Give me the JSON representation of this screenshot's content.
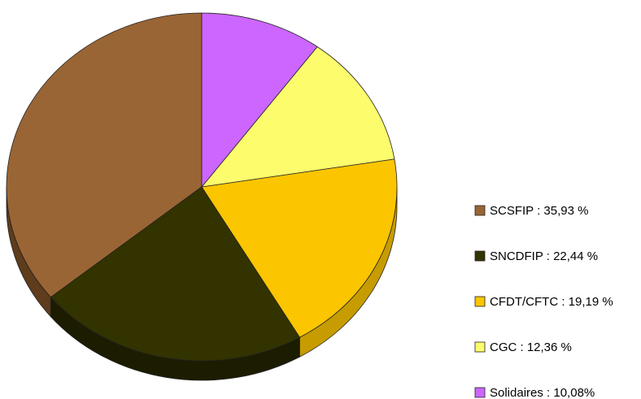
{
  "chart_data": {
    "type": "pie",
    "title": "",
    "series": [
      {
        "label": "SCSFIP : 35,93 %",
        "value": 35.93,
        "color": "#9A6534",
        "side_color": "#5E3C1C"
      },
      {
        "label": "SNCDFIP : 22,44 %",
        "value": 22.44,
        "color": "#333300",
        "side_color": "#1C1C00"
      },
      {
        "label": "CFDT/CFTC : 19,19 %",
        "value": 19.19,
        "color": "#FBC500",
        "side_color": "#C79C00"
      },
      {
        "label": "CGC : 12,36 %",
        "value": 12.36,
        "color": "#FCFC6C",
        "side_color": "#C8C84A"
      },
      {
        "label": "Solidaires : 10,08%",
        "value": 10.08,
        "color": "#CC66FF",
        "side_color": "#9A45C8"
      }
    ],
    "legend_position": "right",
    "style": "3d-tilted-pie"
  }
}
